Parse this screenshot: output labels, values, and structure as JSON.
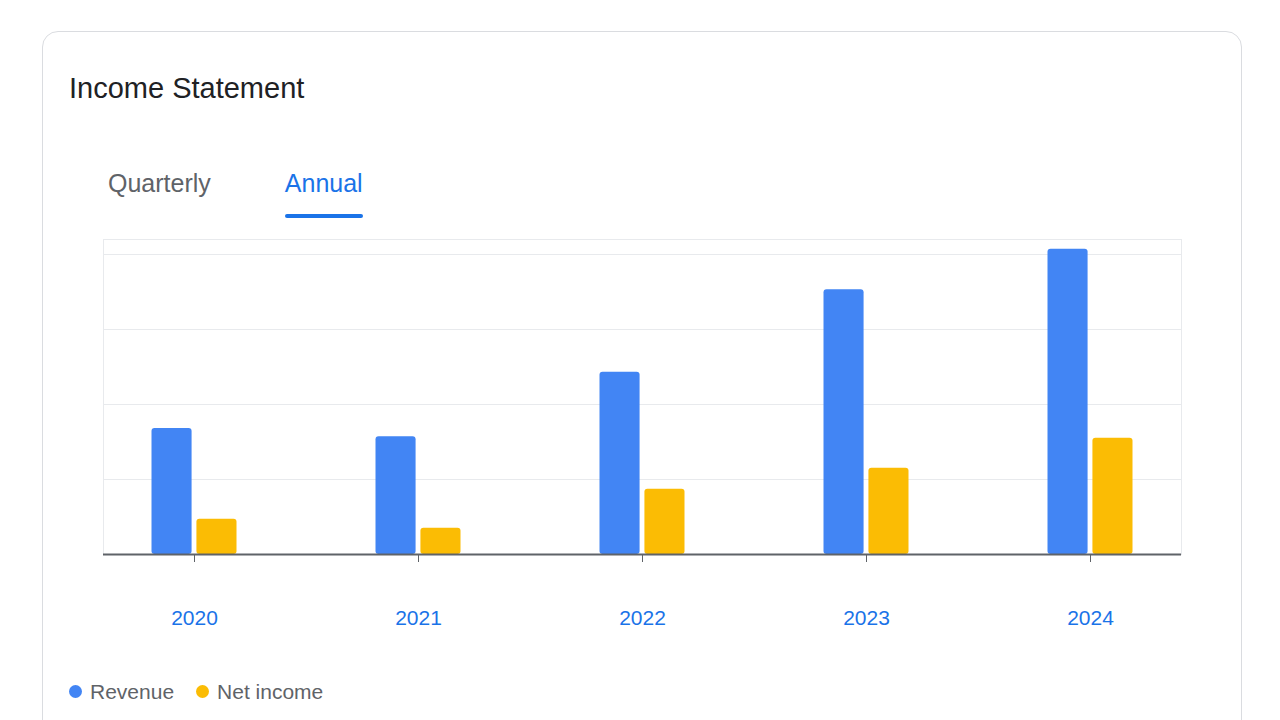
{
  "chart_data": {
    "type": "bar",
    "title": "Income Statement",
    "tabs": [
      "Quarterly",
      "Annual"
    ],
    "active_tab": "Annual",
    "categories": [
      "2020",
      "2021",
      "2022",
      "2023",
      "2024"
    ],
    "series": [
      {
        "name": "Revenue",
        "color": "#4285f4",
        "values": [
          1.68,
          1.57,
          2.43,
          3.53,
          4.07
        ]
      },
      {
        "name": "Net income",
        "color": "#fbbc04",
        "values": [
          0.47,
          0.35,
          0.87,
          1.15,
          1.55
        ]
      }
    ],
    "ylim": [
      0,
      4.2
    ],
    "yticks": [
      0,
      1,
      2,
      3,
      4
    ],
    "grid": true,
    "tick_labels": "x",
    "legend": "bottom"
  }
}
